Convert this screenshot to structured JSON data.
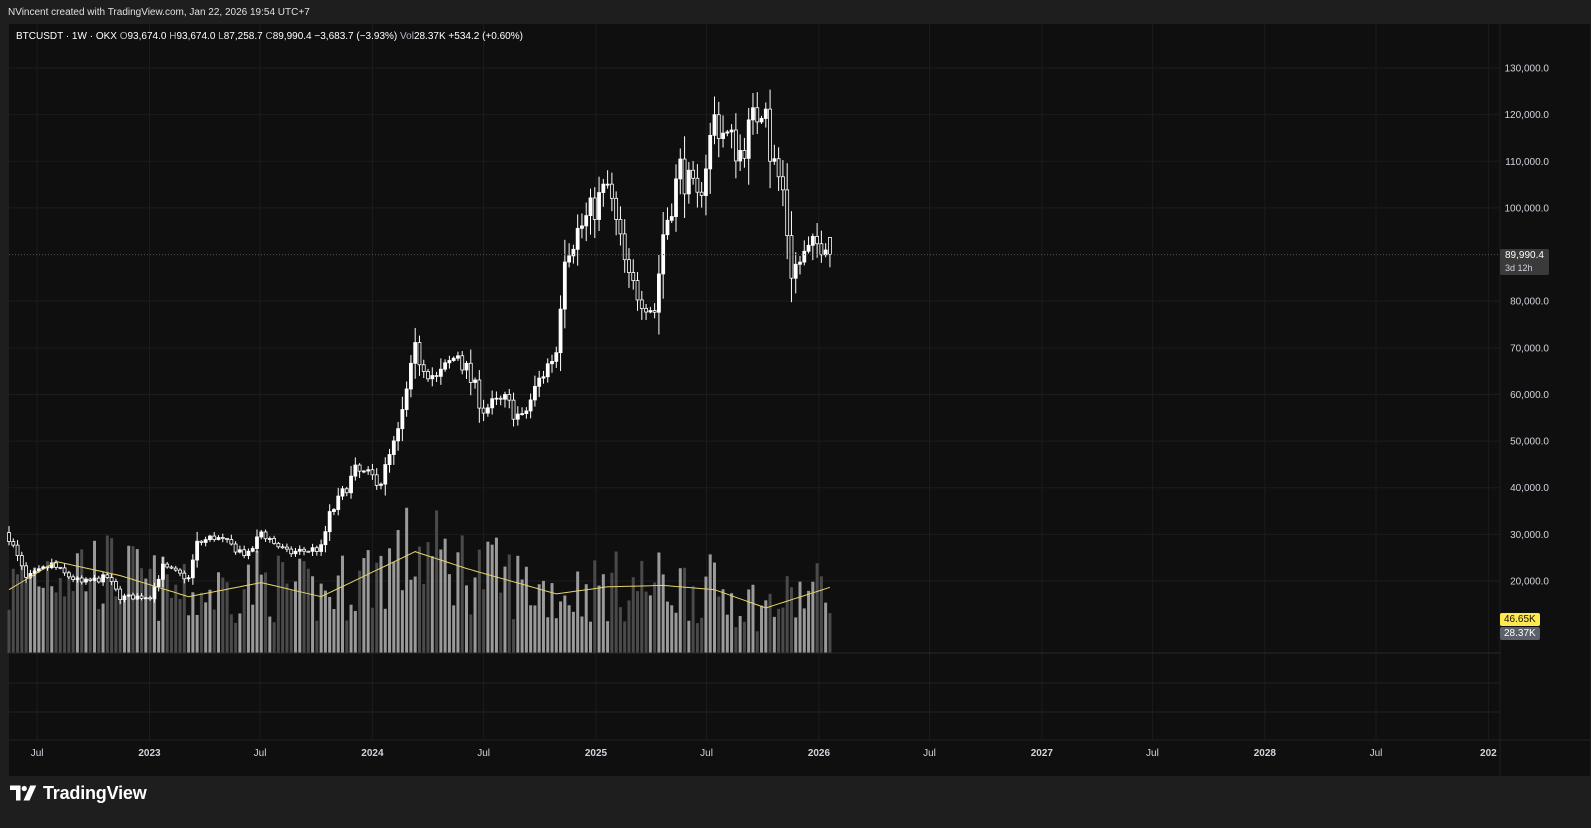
{
  "header": {
    "credit": "NVincent created with TradingView.com, Jan 22, 2026 19:54 UTC+7"
  },
  "legend": {
    "symbol": "BTCUSDT · 1W · OKX",
    "o_label": "O",
    "o": "93,674.0",
    "h_label": "H",
    "h": "93,674.0",
    "l_label": "L",
    "l": "87,258.7",
    "c_label": "C",
    "c": "89,990.4",
    "change": "−3,683.7 (−3.93%)",
    "vol_label": "Vol",
    "vol": "28.37K",
    "vol_change": "+534.2 (+0.60%)"
  },
  "tags": {
    "price": "89,990.4",
    "countdown": "3d 12h",
    "vol_ma": "46.65K",
    "vol": "28.37K"
  },
  "brand": {
    "name": "TradingView"
  },
  "colors": {
    "background": "#0f0f0f",
    "candle": "#ffffff",
    "volume_up": "#9a9a9a",
    "volume_down": "#4a4a4a",
    "volume_ma": "#e8d46a",
    "grid": "#1c1c1c",
    "axis_text": "#d1d4dc"
  },
  "chart_data": {
    "type": "candlestick",
    "interval": "1W",
    "ylim": [
      0,
      140000
    ],
    "y_ticks": [
      "130,000.0",
      "120,000.0",
      "110,000.0",
      "100,000.0",
      "80,000.0",
      "70,000.0",
      "60,000.0",
      "50,000.0",
      "40,000.0",
      "30,000.0",
      "20,000.0"
    ],
    "y_tick_values": [
      130000,
      120000,
      110000,
      100000,
      80000,
      70000,
      60000,
      50000,
      40000,
      30000,
      20000
    ],
    "x_ticks": [
      "Jul",
      "2023",
      "Jul",
      "2024",
      "Jul",
      "2025",
      "Jul",
      "2026",
      "Jul",
      "2027",
      "Jul",
      "2028",
      "Jul",
      "202"
    ],
    "x_tick_dates": [
      "2022-07-01",
      "2023-01-01",
      "2023-07-01",
      "2024-01-01",
      "2024-07-01",
      "2025-01-01",
      "2025-07-01",
      "2026-01-01",
      "2026-07-01",
      "2027-01-01",
      "2027-07-01",
      "2028-01-01",
      "2028-07-01",
      "2029-01-01"
    ],
    "x_range": [
      "2022-05-16",
      "2029-01-20"
    ],
    "close_anchors": [
      [
        "2022-05-16",
        29500
      ],
      [
        "2022-06-13",
        20500
      ],
      [
        "2022-07-25",
        23500
      ],
      [
        "2022-08-15",
        21500
      ],
      [
        "2022-09-12",
        19600
      ],
      [
        "2022-10-24",
        20800
      ],
      [
        "2022-11-14",
        16500
      ],
      [
        "2023-01-02",
        16700
      ],
      [
        "2023-01-23",
        23000
      ],
      [
        "2023-03-06",
        20500
      ],
      [
        "2023-03-20",
        28000
      ],
      [
        "2023-04-17",
        29500
      ],
      [
        "2023-06-12",
        25500
      ],
      [
        "2023-07-03",
        30500
      ],
      [
        "2023-08-14",
        26000
      ],
      [
        "2023-10-09",
        27000
      ],
      [
        "2023-10-23",
        34000
      ],
      [
        "2023-12-04",
        43500
      ],
      [
        "2024-01-15",
        41500
      ],
      [
        "2024-02-12",
        51500
      ],
      [
        "2024-03-11",
        69000
      ],
      [
        "2024-04-15",
        63000
      ],
      [
        "2024-05-20",
        69000
      ],
      [
        "2024-07-01",
        57000
      ],
      [
        "2024-08-05",
        58500
      ],
      [
        "2024-09-02",
        54500
      ],
      [
        "2024-09-30",
        63000
      ],
      [
        "2024-10-28",
        69500
      ],
      [
        "2024-11-11",
        91000
      ],
      [
        "2024-12-16",
        97500
      ],
      [
        "2025-01-20",
        104500
      ],
      [
        "2025-02-24",
        84000
      ],
      [
        "2025-04-07",
        78000
      ],
      [
        "2025-04-21",
        94500
      ],
      [
        "2025-05-19",
        108500
      ],
      [
        "2025-06-16",
        101000
      ],
      [
        "2025-07-14",
        119000
      ],
      [
        "2025-08-04",
        115000
      ],
      [
        "2025-08-25",
        112000
      ],
      [
        "2025-10-06",
        124500
      ],
      [
        "2025-10-13",
        112000
      ],
      [
        "2025-11-03",
        103500
      ],
      [
        "2025-11-17",
        86500
      ],
      [
        "2025-12-08",
        89500
      ],
      [
        "2026-01-12",
        93674
      ],
      [
        "2026-01-19",
        89990.4
      ]
    ],
    "volume": {
      "ylim": [
        0,
        130000
      ],
      "ma_anchors": [
        [
          "2022-05-16",
          45000
        ],
        [
          "2022-08-01",
          65000
        ],
        [
          "2022-11-14",
          55000
        ],
        [
          "2023-03-06",
          40000
        ],
        [
          "2023-07-03",
          50000
        ],
        [
          "2023-10-09",
          40000
        ],
        [
          "2024-03-11",
          72000
        ],
        [
          "2024-06-03",
          60000
        ],
        [
          "2024-10-28",
          42000
        ],
        [
          "2025-01-20",
          47000
        ],
        [
          "2025-04-21",
          48000
        ],
        [
          "2025-07-14",
          45000
        ],
        [
          "2025-10-06",
          32000
        ],
        [
          "2026-01-19",
          46650
        ]
      ],
      "last_value": 28370,
      "last_ma": 46650
    }
  }
}
